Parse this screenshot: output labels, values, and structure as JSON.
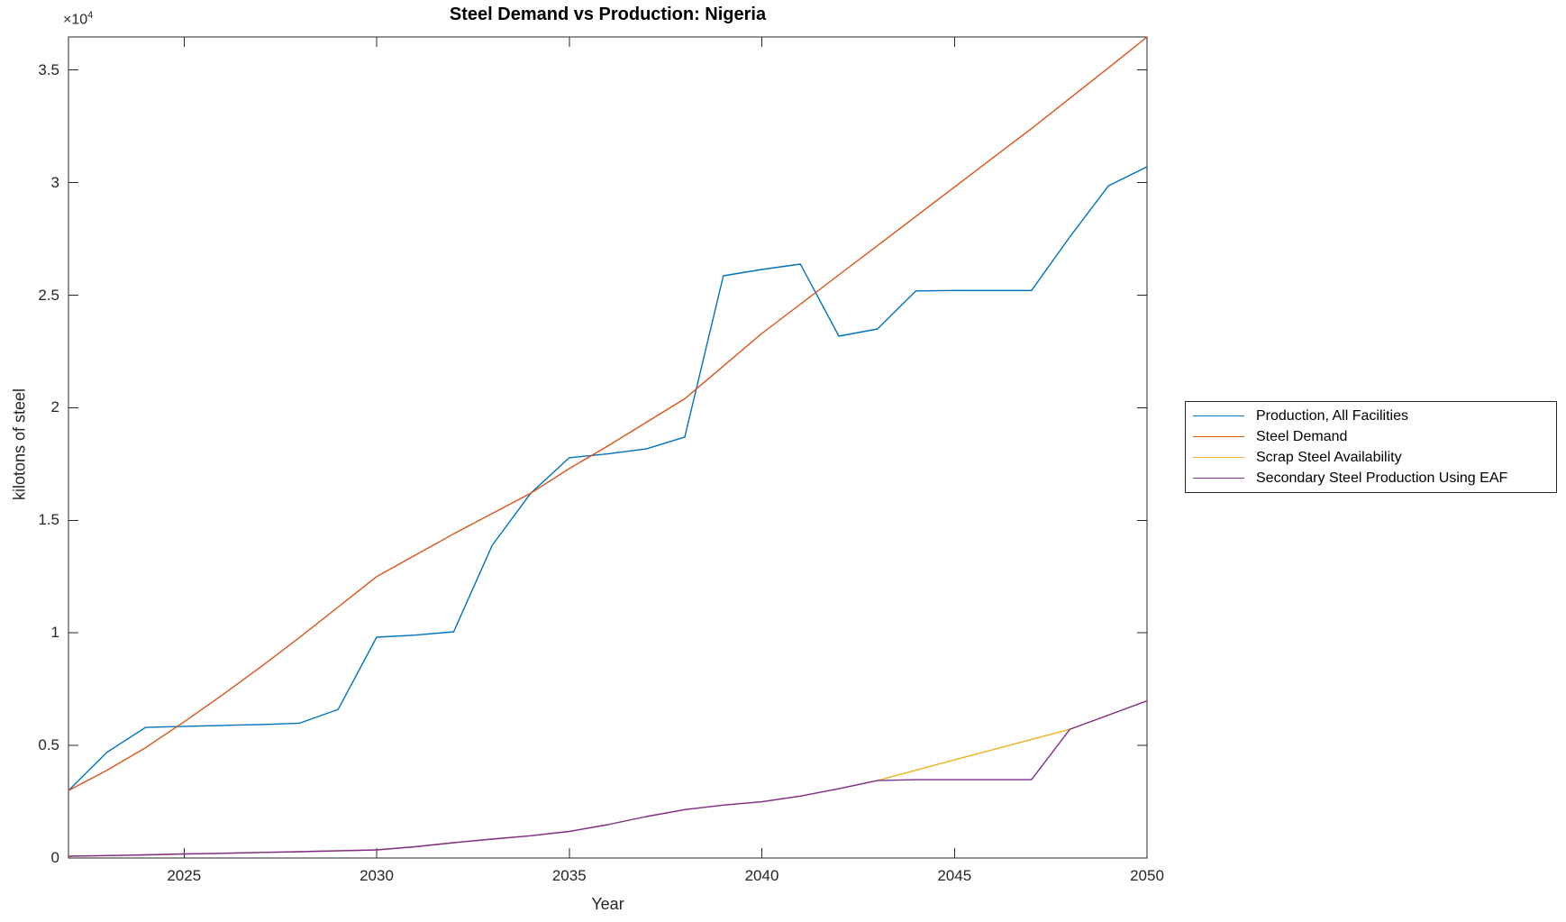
{
  "chart_data": {
    "type": "line",
    "title": "Steel Demand vs Production: Nigeria",
    "xlabel": "Year",
    "ylabel": "kilotons of steel",
    "grid": false,
    "legend_position": "right-outside",
    "axis_color": "#262626",
    "y_axis": {
      "multiplier_base": "×10",
      "multiplier_exp": "4",
      "lim": [
        0,
        36470
      ],
      "ticks": [
        0,
        5000,
        10000,
        15000,
        20000,
        25000,
        30000,
        35000
      ],
      "tick_labels": [
        "0",
        "0.5",
        "1",
        "1.5",
        "2",
        "2.5",
        "3",
        "3.5"
      ]
    },
    "x_axis": {
      "lim": [
        2022,
        2050
      ],
      "ticks": [
        2025,
        2030,
        2035,
        2040,
        2045,
        2050
      ],
      "tick_labels": [
        "2025",
        "2030",
        "2035",
        "2040",
        "2045",
        "2050"
      ]
    },
    "x": [
      2022,
      2023,
      2024,
      2025,
      2026,
      2027,
      2028,
      2029,
      2030,
      2031,
      2032,
      2033,
      2034,
      2035,
      2036,
      2037,
      2038,
      2039,
      2040,
      2041,
      2042,
      2043,
      2044,
      2045,
      2046,
      2047,
      2048,
      2049,
      2050
    ],
    "series": [
      {
        "name": "Production, All Facilities",
        "color": "#0072BD",
        "values": [
          3000,
          4700,
          5800,
          5850,
          5890,
          5930,
          5990,
          6600,
          9810,
          9900,
          10050,
          13890,
          16200,
          17780,
          17950,
          18170,
          18700,
          25860,
          26140,
          26380,
          23180,
          23500,
          25190,
          25210,
          25210,
          25210,
          27600,
          29860,
          30700
        ]
      },
      {
        "name": "Steel Demand",
        "color": "#D95319",
        "values": [
          3000,
          3900,
          4900,
          6050,
          7250,
          8500,
          9800,
          11150,
          12500,
          13450,
          14400,
          15300,
          16200,
          17300,
          18300,
          19350,
          20400,
          21850,
          23300,
          24600,
          25900,
          27200,
          28500,
          29800,
          31100,
          32400,
          33750,
          35100,
          36470
        ]
      },
      {
        "name": "Scrap Steel Availability",
        "color": "#EDB120",
        "values": [
          80,
          110,
          140,
          180,
          210,
          250,
          280,
          320,
          360,
          500,
          680,
          840,
          990,
          1180,
          1480,
          1840,
          2150,
          2350,
          2500,
          2750,
          3080,
          3440,
          3900,
          4360,
          4810,
          5270,
          5720,
          6350,
          6980
        ]
      },
      {
        "name": "Secondary Steel Production Using EAF",
        "color": "#7E2F8E",
        "values": [
          80,
          110,
          140,
          180,
          210,
          250,
          280,
          320,
          360,
          500,
          680,
          840,
          990,
          1180,
          1480,
          1840,
          2150,
          2350,
          2500,
          2750,
          3080,
          3440,
          3480,
          3480,
          3480,
          3480,
          5720,
          6350,
          6980
        ]
      }
    ]
  }
}
